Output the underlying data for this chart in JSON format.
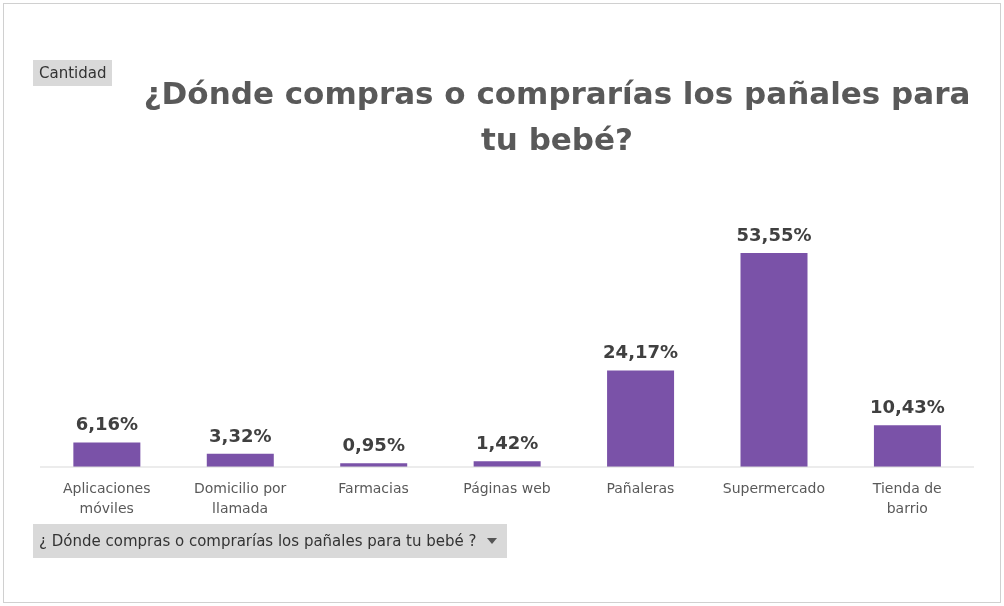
{
  "chart_data": {
    "type": "bar",
    "title": "¿Dónde compras o comprarías los pañales para tu bebé?",
    "categories": [
      "Aplicaciones móviles",
      "Domicilio por llamada",
      "Farmacias",
      "Páginas web",
      "Pañaleras",
      "Supermercado",
      "Tienda de barrio"
    ],
    "values": [
      6.16,
      3.32,
      0.95,
      1.42,
      24.17,
      53.55,
      10.43
    ],
    "value_labels": [
      "6,16%",
      "3,32%",
      "0,95%",
      "1,42%",
      "24,17%",
      "53,55%",
      "10,43%"
    ],
    "color": "#7a52a8",
    "annotations": [
      "Cantidad",
      "¿ Dónde compras o comprarías los pañales para tu bebé ?"
    ],
    "grid": false,
    "legend": false
  }
}
